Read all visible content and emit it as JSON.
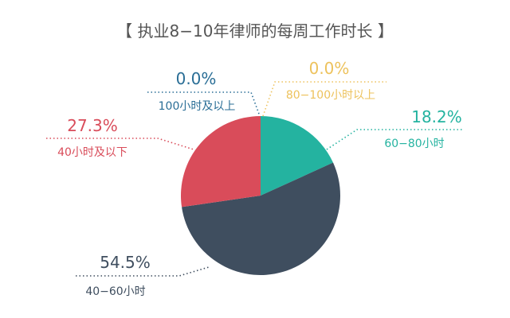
{
  "chart_data": {
    "type": "pie",
    "title": "【 执业8−10年律师的每周工作时长 】",
    "slices": [
      {
        "label": "60−80小时",
        "value": 18.2,
        "value_label": "18.2%",
        "color": "#24b3a0"
      },
      {
        "label": "40−60小时",
        "value": 54.5,
        "value_label": "54.5%",
        "color": "#3f4e5f"
      },
      {
        "label": "40小时及以下",
        "value": 27.3,
        "value_label": "27.3%",
        "color": "#d94c5a"
      },
      {
        "label": "100小时及以上",
        "value": 0.0,
        "value_label": "0.0%",
        "color": "#2a6e96"
      },
      {
        "label": "80−100小时以上",
        "value": 0.0,
        "value_label": "0.0%",
        "color": "#edc25c"
      }
    ],
    "start": "12 o'clock",
    "direction": "clockwise"
  }
}
